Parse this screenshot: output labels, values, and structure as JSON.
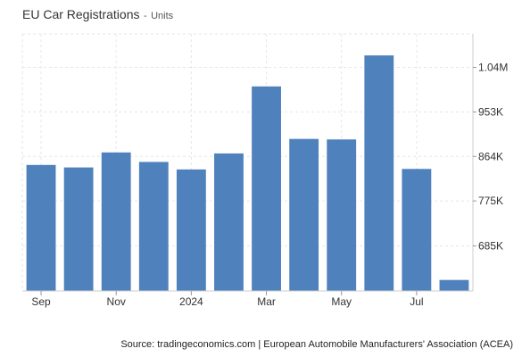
{
  "chart_data": {
    "type": "bar",
    "title": "EU Car Registrations",
    "subtitle": "Units",
    "title_separator": "-",
    "source": "Source: tradingeconomics.com | European Automobile Manufacturers' Association (ACEA)",
    "categories": [
      "Sep 2023",
      "Oct 2023",
      "Nov 2023",
      "Dec 2023",
      "Jan 2024",
      "Feb 2024",
      "Mar 2024",
      "Apr 2024",
      "May 2024",
      "Jun 2024",
      "Jul 2024",
      "Aug 2024"
    ],
    "values": [
      847000,
      842000,
      872000,
      853000,
      838000,
      870000,
      1004000,
      899000,
      898000,
      1066000,
      839000,
      617000
    ],
    "x_tick_labels": [
      {
        "category": "Sep 2023",
        "label": "Sep"
      },
      {
        "category": "Nov 2023",
        "label": "Nov"
      },
      {
        "category": "Jan 2024",
        "label": "2024"
      },
      {
        "category": "Mar 2024",
        "label": "Mar"
      },
      {
        "category": "May 2024",
        "label": "May"
      },
      {
        "category": "Jul 2024",
        "label": "Jul"
      }
    ],
    "y_ticks": [
      {
        "value": 685000,
        "label": "685K"
      },
      {
        "value": 775000,
        "label": "775K"
      },
      {
        "value": 864000,
        "label": "864K"
      },
      {
        "value": 953000,
        "label": "953K"
      },
      {
        "value": 1042000,
        "label": "1.04M"
      }
    ],
    "ylim": [
      595000,
      1109000
    ],
    "y_axis_side": "right",
    "grid": true,
    "bar_color": "#4f81bd",
    "grid_color": "#e6e6e6"
  }
}
